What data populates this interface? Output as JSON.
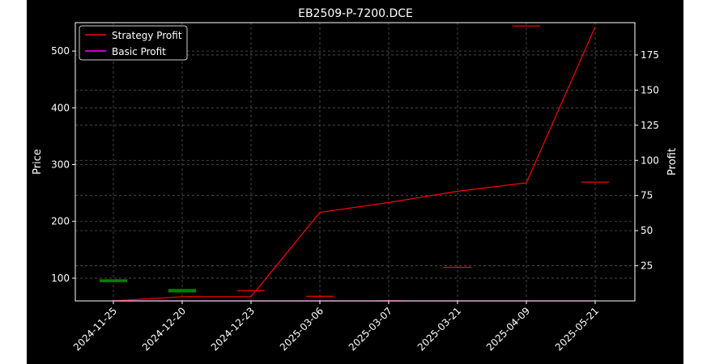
{
  "chart_data": {
    "type": "candlestick+line",
    "title": "EB2509-P-7200.DCE",
    "xlabel": "",
    "ylabel_left": "Price",
    "ylabel_right": "Profit",
    "categories": [
      "2024-11-25",
      "2024-12-20",
      "2024-12-23",
      "2025-03-06",
      "2025-03-07",
      "2025-03-21",
      "2025-04-09",
      "2025-05-21"
    ],
    "left_axis": {
      "ylim": [
        60,
        550
      ],
      "ticks": [
        100,
        200,
        300,
        400,
        500
      ]
    },
    "right_axis": {
      "ylim": [
        0,
        198
      ],
      "ticks": [
        25,
        50,
        75,
        100,
        125,
        150,
        175
      ]
    },
    "candles": [
      {
        "date": "2024-11-25",
        "open": 98,
        "close": 93,
        "color": "#008000"
      },
      {
        "date": "2024-12-20",
        "open": 81,
        "close": 75,
        "color": "#008000"
      },
      {
        "date": "2024-12-23",
        "open": 79,
        "close": 79,
        "color": "#ff0000"
      },
      {
        "date": "2025-03-06",
        "open": 69,
        "close": 69,
        "color": "#ff0000"
      },
      {
        "date": "2025-03-07",
        "open": 61,
        "close": 61,
        "color": "#ff0000"
      },
      {
        "date": "2025-03-21",
        "open": 120,
        "close": 120,
        "color": "#ff0000"
      },
      {
        "date": "2025-04-09",
        "open": 545,
        "close": 545,
        "color": "#ff0000"
      },
      {
        "date": "2025-05-21",
        "open": 270,
        "close": 270,
        "color": "#ff0000"
      }
    ],
    "series": [
      {
        "name": "Strategy Profit",
        "axis": "right",
        "color": "#ff0000",
        "values": [
          0,
          3,
          3,
          63,
          70,
          78,
          84,
          195
        ]
      },
      {
        "name": "Basic Profit",
        "axis": "right",
        "color": "#ff00ff",
        "values": [
          0,
          0,
          0,
          0,
          0,
          0,
          0,
          0
        ]
      }
    ],
    "legend_position": "top-left",
    "grid": true
  }
}
